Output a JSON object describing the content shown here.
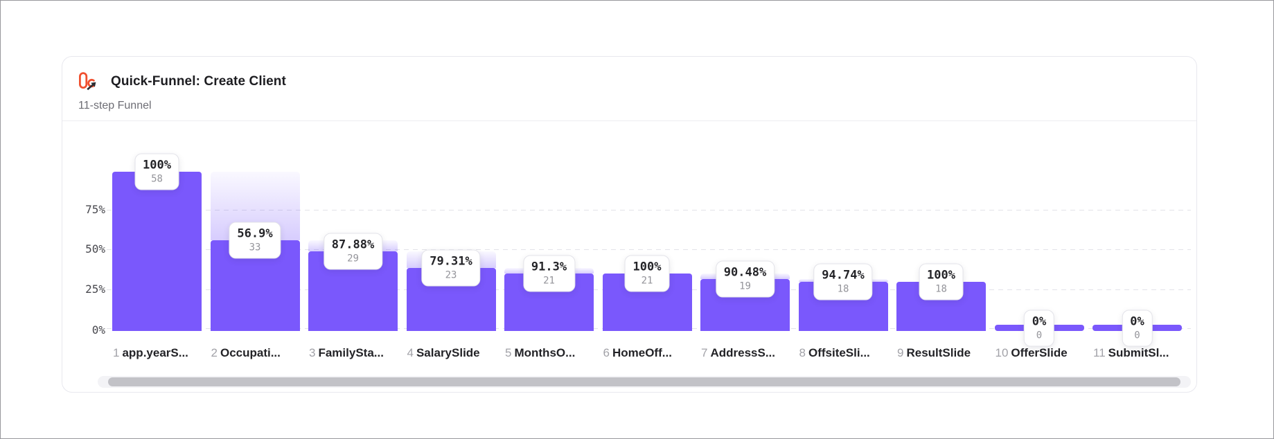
{
  "header": {
    "title": "Quick-Funnel: Create Client",
    "subtitle": "11-step Funnel",
    "logo_icon": "funnel-chart-trend-icon",
    "logo_color": "#F0502F",
    "logo_arrow_color": "#2e2e33"
  },
  "chart_data": {
    "type": "bar",
    "subtype": "funnel",
    "title": "Quick-Funnel: Create Client",
    "subtitle": "11-step Funnel",
    "bar_color": "#7A58FC",
    "dropoff_fill": [
      "rgba(122,88,252,0.04)",
      "rgba(122,88,252,0.30)"
    ],
    "grid": "dashed horizontal lines",
    "legend": "none",
    "y_axis": {
      "tick_labels": [
        "75%",
        "50%",
        "25%",
        "0%"
      ],
      "tick_pcts": [
        75,
        50,
        25,
        0
      ],
      "ylim": [
        0,
        100
      ]
    },
    "steps": [
      {
        "num": "1",
        "label": "app.yearS...",
        "conversion_pct_label": "100%",
        "count": "58",
        "pct_of_first": 100
      },
      {
        "num": "2",
        "label": "Occupati...",
        "conversion_pct_label": "56.9%",
        "count": "33",
        "pct_of_first": 56.9
      },
      {
        "num": "3",
        "label": "FamilySta...",
        "conversion_pct_label": "87.88%",
        "count": "29",
        "pct_of_first": 50
      },
      {
        "num": "4",
        "label": "SalarySlide",
        "conversion_pct_label": "79.31%",
        "count": "23",
        "pct_of_first": 39.66
      },
      {
        "num": "5",
        "label": "MonthsO...",
        "conversion_pct_label": "91.3%",
        "count": "21",
        "pct_of_first": 36.21
      },
      {
        "num": "6",
        "label": "HomeOff...",
        "conversion_pct_label": "100%",
        "count": "21",
        "pct_of_first": 36.21
      },
      {
        "num": "7",
        "label": "AddressS...",
        "conversion_pct_label": "90.48%",
        "count": "19",
        "pct_of_first": 32.76
      },
      {
        "num": "8",
        "label": "OffsiteSli...",
        "conversion_pct_label": "94.74%",
        "count": "18",
        "pct_of_first": 31.03
      },
      {
        "num": "9",
        "label": "ResultSlide",
        "conversion_pct_label": "100%",
        "count": "18",
        "pct_of_first": 31.03
      },
      {
        "num": "10",
        "label": "OfferSlide",
        "conversion_pct_label": "0%",
        "count": "0",
        "pct_of_first": 0
      },
      {
        "num": "11",
        "label": "SubmitSl...",
        "conversion_pct_label": "0%",
        "count": "0",
        "pct_of_first": 0
      }
    ]
  }
}
